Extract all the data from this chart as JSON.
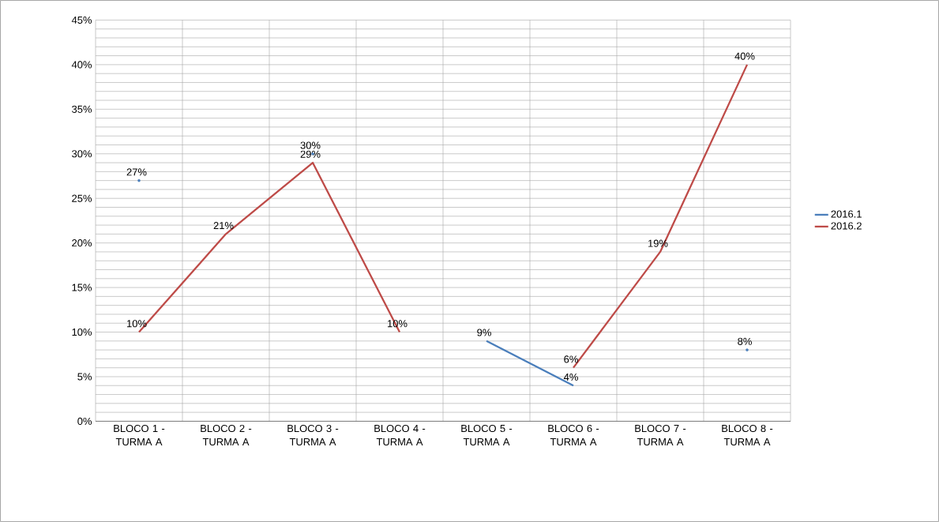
{
  "chart_data": {
    "type": "line",
    "categories": [
      "BLOCO 1 - TURMA A",
      "BLOCO 2 - TURMA A",
      "BLOCO 3 - TURMA A",
      "BLOCO 4 - TURMA A",
      "BLOCO 5 - TURMA A",
      "BLOCO 6 - TURMA A",
      "BLOCO 7 - TURMA A",
      "BLOCO 8 - TURMA A"
    ],
    "series": [
      {
        "name": "2016.1",
        "color": "#4a7ebb",
        "values": [
          27,
          null,
          30,
          null,
          9,
          4,
          null,
          8
        ],
        "value_labels": [
          "27%",
          null,
          "30%",
          null,
          "9%",
          "4%",
          null,
          "8%"
        ]
      },
      {
        "name": "2016.2",
        "color": "#be4b48",
        "values": [
          10,
          21,
          29,
          10,
          null,
          6,
          19,
          40
        ],
        "value_labels": [
          "10%",
          "21%",
          "29%",
          "10%",
          null,
          "6%",
          "19%",
          "40%"
        ]
      }
    ],
    "ylim": [
      0,
      45
    ],
    "yticks": [
      {
        "value": 0,
        "label": "0%"
      },
      {
        "value": 5,
        "label": "5%"
      },
      {
        "value": 10,
        "label": "10%"
      },
      {
        "value": 15,
        "label": "15%"
      },
      {
        "value": 20,
        "label": "20%"
      },
      {
        "value": 25,
        "label": "25%"
      },
      {
        "value": 30,
        "label": "30%"
      },
      {
        "value": 35,
        "label": "35%"
      },
      {
        "value": 40,
        "label": "40%"
      },
      {
        "value": 45,
        "label": "45%"
      }
    ],
    "grid": true,
    "legend": "right"
  }
}
